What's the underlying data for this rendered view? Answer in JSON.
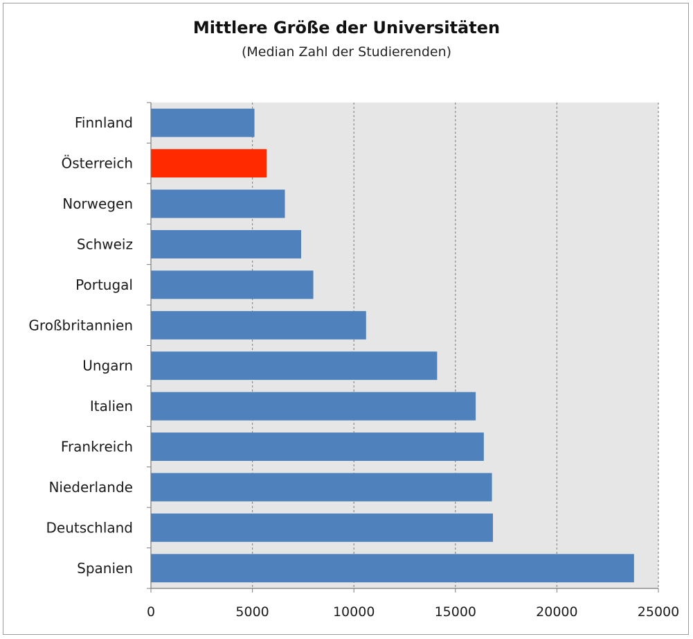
{
  "chart_data": {
    "type": "bar",
    "orientation": "horizontal",
    "title": "Mittlere Größe der Universitäten",
    "subtitle": "(Median Zahl der Studierenden)",
    "categories": [
      "Finnland",
      "Österreich",
      "Norwegen",
      "Schweiz",
      "Portugal",
      "Großbritannien",
      "Ungarn",
      "Italien",
      "Frankreich",
      "Niederlande",
      "Deutschland",
      "Spanien"
    ],
    "values": [
      5100,
      5700,
      6600,
      7400,
      8000,
      10600,
      14100,
      16000,
      16400,
      16800,
      16850,
      23800
    ],
    "highlight_index": 1,
    "bar_color": "#4f81bd",
    "highlight_color": "#ff2a00",
    "plot_background": "#e6e6e6",
    "grid_color": "#8a8a8a",
    "xlim": [
      0,
      25000
    ],
    "xticks": [
      "0",
      "5000",
      "10000",
      "15000",
      "20000",
      "25000"
    ],
    "grid": true
  }
}
